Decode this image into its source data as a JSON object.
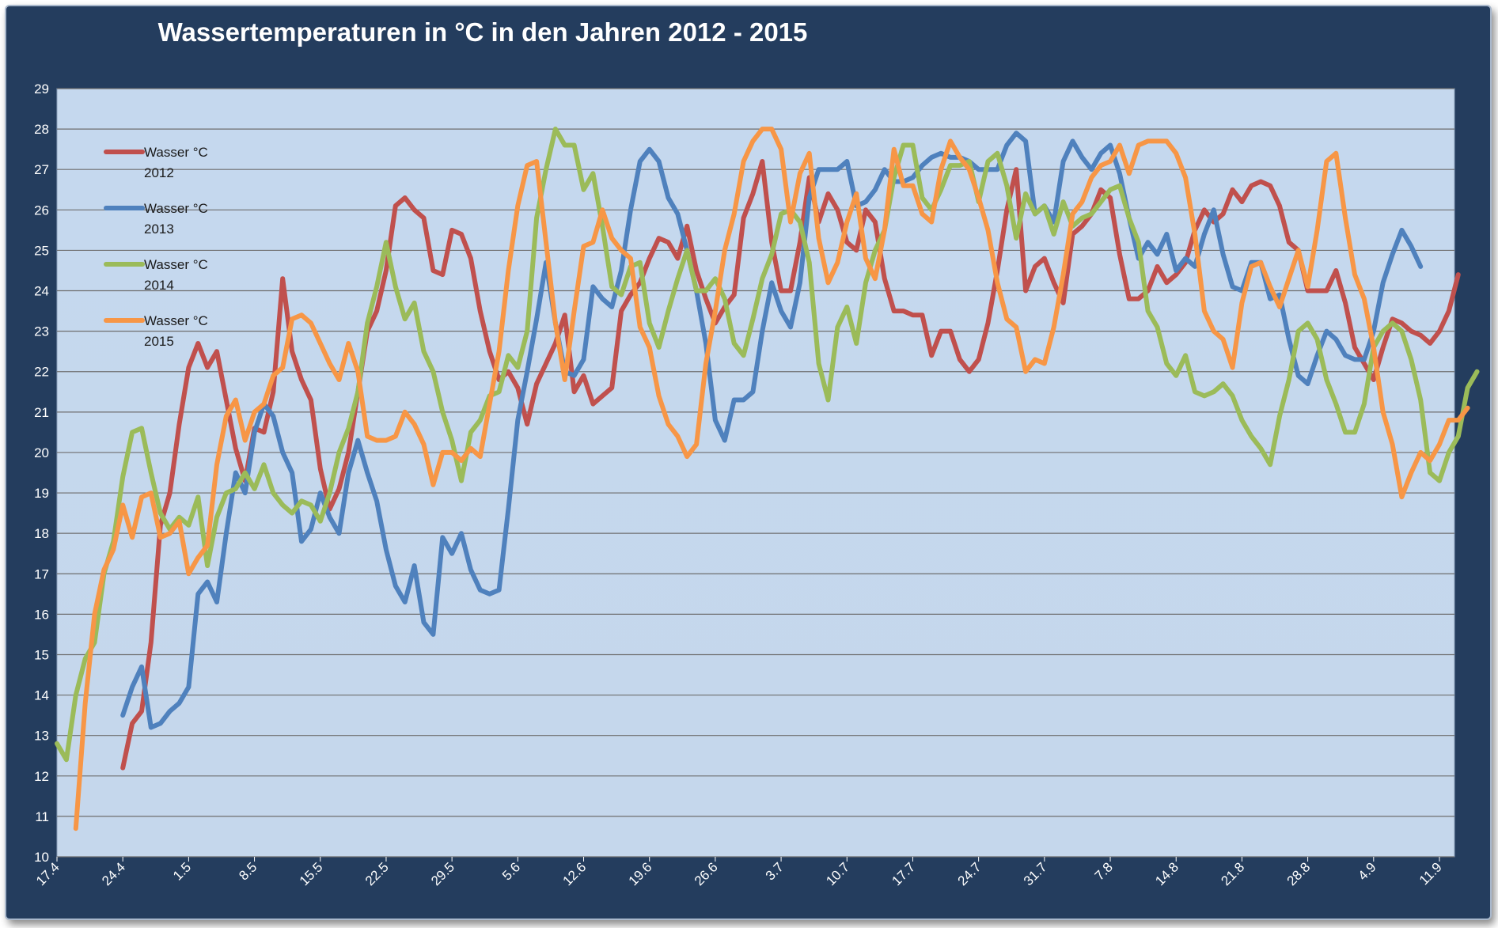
{
  "chart_data": {
    "type": "line",
    "title": "Wassertemperaturen in °C  in den Jahren 2012 - 2015",
    "xlabel": "",
    "ylabel": "",
    "ylim": [
      10,
      29
    ],
    "yticks": [
      10,
      11,
      12,
      13,
      14,
      15,
      16,
      17,
      18,
      19,
      20,
      21,
      22,
      23,
      24,
      25,
      26,
      27,
      28,
      29
    ],
    "x_start": "17.4",
    "x_step_days": 1,
    "x_tick_labels": [
      "17.4",
      "24.4",
      "1.5",
      "8.5",
      "15.5",
      "22.5",
      "29.5",
      "5.6",
      "12.6",
      "19.6",
      "26.6",
      "3.7",
      "10.7",
      "17.7",
      "24.7",
      "31.7",
      "7.8",
      "14.8",
      "21.8",
      "28.8",
      "4.9",
      "11.9"
    ],
    "grid": true,
    "legend_position": "left",
    "series": [
      {
        "name": "Wasser °C 2012",
        "color": "#c0504d",
        "start_index": 7,
        "values": [
          12.2,
          13.3,
          13.6,
          15.3,
          18.2,
          19.0,
          20.7,
          22.1,
          22.7,
          22.1,
          22.5,
          21.3,
          20.1,
          19.3,
          20.6,
          20.5,
          21.5,
          24.3,
          22.5,
          21.8,
          21.3,
          19.6,
          18.6,
          19.1,
          20.0,
          21.5,
          23.0,
          23.5,
          24.5,
          26.1,
          26.3,
          26.0,
          25.8,
          24.5,
          24.4,
          25.5,
          25.4,
          24.8,
          23.5,
          22.5,
          21.8,
          22.0,
          21.6,
          20.7,
          21.7,
          22.2,
          22.7,
          23.4,
          21.5,
          21.9,
          21.2,
          21.4,
          21.6,
          23.5,
          23.9,
          24.2,
          24.8,
          25.3,
          25.2,
          24.8,
          25.6,
          24.5,
          23.8,
          23.2,
          23.6,
          23.9,
          25.8,
          26.4,
          27.2,
          25.2,
          24.0,
          24.0,
          25.2,
          26.8,
          25.7,
          26.4,
          26.0,
          25.2,
          25.0,
          26.0,
          25.7,
          24.3,
          23.5,
          23.5,
          23.4,
          23.4,
          22.4,
          23.0,
          23.0,
          22.3,
          22.0,
          22.3,
          23.2,
          24.5,
          26.0,
          27.0,
          24.0,
          24.6,
          24.8,
          24.2,
          23.7,
          25.4,
          25.6,
          25.9,
          26.5,
          26.3,
          24.9,
          23.8,
          23.8,
          24.0,
          24.6,
          24.2,
          24.4,
          24.7,
          25.5,
          26.0,
          25.7,
          25.9,
          26.5,
          26.2,
          26.6,
          26.7,
          26.6,
          26.1,
          25.2,
          25.0,
          24.0,
          24.0,
          24.0,
          24.5,
          23.7,
          22.6,
          22.2,
          21.8,
          22.6,
          23.3,
          23.2,
          23.0,
          22.9,
          22.7,
          23.0,
          23.5,
          24.4
        ]
      },
      {
        "name": "Wasser °C 2013",
        "color": "#4f81bd",
        "start_index": 7,
        "values": [
          13.5,
          14.2,
          14.7,
          13.2,
          13.3,
          13.6,
          13.8,
          14.2,
          16.5,
          16.8,
          16.3,
          18.0,
          19.5,
          19.0,
          20.5,
          21.2,
          20.9,
          20.0,
          19.5,
          17.8,
          18.1,
          19.0,
          18.4,
          18.0,
          19.5,
          20.3,
          19.5,
          18.8,
          17.6,
          16.7,
          16.3,
          17.2,
          15.8,
          15.5,
          17.9,
          17.5,
          18.0,
          17.1,
          16.6,
          16.5,
          16.6,
          18.6,
          20.8,
          22.0,
          23.3,
          24.7,
          23.2,
          22.0,
          21.9,
          22.3,
          24.1,
          23.8,
          23.6,
          24.5,
          26.0,
          27.2,
          27.5,
          27.2,
          26.3,
          25.9,
          25.0,
          24.0,
          22.7,
          20.8,
          20.3,
          21.3,
          21.3,
          21.5,
          23.0,
          24.2,
          23.5,
          23.1,
          24.2,
          26.3,
          27.0,
          27.0,
          27.0,
          27.2,
          26.1,
          26.2,
          26.5,
          27.0,
          26.7,
          26.7,
          26.8,
          27.1,
          27.3,
          27.4,
          27.3,
          27.3,
          27.2,
          27.0,
          27.0,
          27.0,
          27.6,
          27.9,
          27.7,
          25.9,
          26.1,
          25.7,
          27.2,
          27.7,
          27.3,
          27.0,
          27.4,
          27.6,
          26.9,
          25.8,
          24.8,
          25.2,
          24.9,
          25.4,
          24.5,
          24.8,
          24.6,
          25.4,
          26.0,
          24.9,
          24.1,
          24.0,
          24.7,
          24.7,
          23.8,
          23.9,
          22.8,
          21.9,
          21.7,
          22.4,
          23.0,
          22.8,
          22.4,
          22.3,
          22.3,
          23.0,
          24.2,
          24.9,
          25.5,
          25.1,
          24.6
        ]
      },
      {
        "name": "Wasser °C 2014",
        "color": "#9bbb59",
        "start_index": 0,
        "values": [
          12.8,
          12.4,
          14.0,
          14.9,
          15.3,
          17.0,
          17.8,
          19.4,
          20.5,
          20.6,
          19.5,
          18.5,
          18.1,
          18.4,
          18.2,
          18.9,
          17.2,
          18.4,
          19.0,
          19.1,
          19.5,
          19.1,
          19.7,
          19.0,
          18.7,
          18.5,
          18.8,
          18.7,
          18.3,
          19.0,
          20.0,
          20.6,
          21.5,
          23.2,
          24.1,
          25.2,
          24.1,
          23.3,
          23.7,
          22.5,
          22.0,
          21.0,
          20.3,
          19.3,
          20.5,
          20.8,
          21.4,
          21.5,
          22.4,
          22.1,
          23.0,
          25.8,
          27.0,
          28.0,
          27.6,
          27.6,
          26.5,
          26.9,
          25.6,
          24.1,
          23.9,
          24.6,
          24.7,
          23.2,
          22.6,
          23.5,
          24.3,
          25.0,
          24.0,
          24.0,
          24.3,
          23.8,
          22.7,
          22.4,
          23.3,
          24.3,
          24.9,
          25.9,
          26.0,
          25.7,
          24.7,
          22.2,
          21.3,
          23.1,
          23.6,
          22.7,
          24.2,
          25.0,
          25.5,
          26.8,
          27.6,
          27.6,
          26.3,
          26.0,
          26.5,
          27.1,
          27.1,
          27.2,
          26.2,
          27.2,
          27.4,
          26.6,
          25.3,
          26.4,
          25.9,
          26.1,
          25.4,
          26.2,
          25.6,
          25.8,
          25.9,
          26.2,
          26.5,
          26.6,
          25.8,
          25.2,
          23.5,
          23.1,
          22.2,
          21.9,
          22.4,
          21.5,
          21.4,
          21.5,
          21.7,
          21.4,
          20.8,
          20.4,
          20.1,
          19.7,
          20.9,
          21.8,
          23.0,
          23.2,
          22.8,
          21.8,
          21.2,
          20.5,
          20.5,
          21.2,
          22.6,
          23.0,
          23.2,
          23.0,
          22.3,
          21.3,
          19.5,
          19.3,
          20.0,
          20.4,
          21.6,
          22.0
        ]
      },
      {
        "name": "Wasser °C 2015",
        "color": "#f79646",
        "start_index": 2,
        "values": [
          10.7,
          13.8,
          16.0,
          17.1,
          17.6,
          18.7,
          17.9,
          18.9,
          19.0,
          17.9,
          18.0,
          18.3,
          17.0,
          17.4,
          17.7,
          19.7,
          20.9,
          21.3,
          20.3,
          21.0,
          21.2,
          21.9,
          22.1,
          23.3,
          23.4,
          23.2,
          22.7,
          22.2,
          21.8,
          22.7,
          22.0,
          20.4,
          20.3,
          20.3,
          20.4,
          21.0,
          20.7,
          20.2,
          19.2,
          20.0,
          20.0,
          19.8,
          20.1,
          19.9,
          21.2,
          22.5,
          24.5,
          26.1,
          27.1,
          27.2,
          25.2,
          23.2,
          21.8,
          23.5,
          25.1,
          25.2,
          26.0,
          25.3,
          25.0,
          24.8,
          23.1,
          22.6,
          21.4,
          20.7,
          20.4,
          19.9,
          20.2,
          22.2,
          23.5,
          25.0,
          25.9,
          27.2,
          27.7,
          28.0,
          28.0,
          27.5,
          25.7,
          26.9,
          27.4,
          25.3,
          24.2,
          24.7,
          25.7,
          26.4,
          24.8,
          24.3,
          25.5,
          27.5,
          26.6,
          26.6,
          25.9,
          25.7,
          27.0,
          27.7,
          27.3,
          27.0,
          26.3,
          25.5,
          24.2,
          23.3,
          23.1,
          22.0,
          22.3,
          22.2,
          23.1,
          24.4,
          25.9,
          26.2,
          26.8,
          27.1,
          27.2,
          27.6,
          26.9,
          27.6,
          27.7,
          27.7,
          27.7,
          27.4,
          26.8,
          25.4,
          23.5,
          23.0,
          22.8,
          22.1,
          23.7,
          24.6,
          24.7,
          24.1,
          23.6,
          24.3,
          25.0,
          24.1,
          25.5,
          27.2,
          27.4,
          25.8,
          24.4,
          23.8,
          22.6,
          21.0,
          20.2,
          18.9,
          19.5,
          20.0,
          19.8,
          20.2,
          20.8,
          20.8,
          21.1
        ]
      }
    ]
  }
}
